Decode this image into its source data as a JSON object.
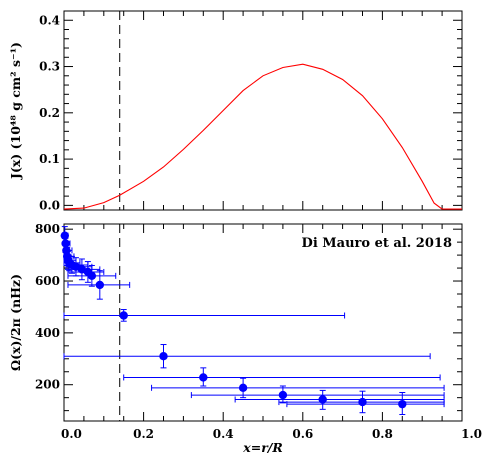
{
  "chart_data": [
    {
      "type": "line",
      "ylabel": "J(x)  (10⁴⁸ g cm² s⁻¹)",
      "xlim": [
        0,
        1.0
      ],
      "ylim": [
        -0.01,
        0.42
      ],
      "yticks": [
        "0.0",
        "0.1",
        "0.2",
        "0.3",
        "0.4"
      ],
      "grid": false,
      "color": "#ff0000",
      "series": [
        {
          "x": [
            0.0,
            0.05,
            0.1,
            0.14,
            0.2,
            0.25,
            0.3,
            0.35,
            0.4,
            0.45,
            0.5,
            0.55,
            0.6,
            0.65,
            0.7,
            0.75,
            0.8,
            0.85,
            0.9,
            0.93,
            0.95,
            1.0
          ],
          "y": [
            -0.008,
            -0.006,
            0.006,
            0.022,
            0.052,
            0.083,
            0.121,
            0.162,
            0.205,
            0.248,
            0.28,
            0.298,
            0.305,
            0.294,
            0.272,
            0.237,
            0.187,
            0.125,
            0.052,
            0.005,
            -0.008,
            -0.008
          ]
        }
      ],
      "marker_line_x": 0.14
    },
    {
      "type": "scatter",
      "xlabel": "x=r/R",
      "ylabel": "Ω(x)/2π  (nHz)",
      "xlim": [
        0,
        1.0
      ],
      "ylim": [
        60,
        820
      ],
      "xticks": [
        "0.0",
        "0.2",
        "0.4",
        "0.6",
        "0.8",
        "1.0"
      ],
      "yticks": [
        "200",
        "400",
        "600",
        "800"
      ],
      "grid": false,
      "color": "#0000ff",
      "legend_text": "Di Mauro et al. 2018",
      "legend_placement": "top-right",
      "marker_line_x": 0.14,
      "series": [
        {
          "points": [
            {
              "x": 0.002,
              "y": 775,
              "xmin": 0.0,
              "xmax": 0.01,
              "ymin": 740,
              "ymax": 810
            },
            {
              "x": 0.004,
              "y": 745,
              "xmin": 0.0,
              "xmax": 0.015,
              "ymin": 710,
              "ymax": 780
            },
            {
              "x": 0.006,
              "y": 718,
              "xmin": 0.0,
              "xmax": 0.02,
              "ymin": 685,
              "ymax": 752
            },
            {
              "x": 0.008,
              "y": 695,
              "xmin": 0.0,
              "xmax": 0.025,
              "ymin": 660,
              "ymax": 730
            },
            {
              "x": 0.01,
              "y": 680,
              "xmin": 0.0,
              "xmax": 0.03,
              "ymin": 645,
              "ymax": 715
            },
            {
              "x": 0.013,
              "y": 670,
              "xmin": 0.0,
              "xmax": 0.04,
              "ymin": 640,
              "ymax": 700
            },
            {
              "x": 0.02,
              "y": 662,
              "xmin": 0.005,
              "xmax": 0.06,
              "ymin": 630,
              "ymax": 695
            },
            {
              "x": 0.03,
              "y": 655,
              "xmin": 0.005,
              "xmax": 0.07,
              "ymin": 620,
              "ymax": 690
            },
            {
              "x": 0.045,
              "y": 645,
              "xmin": 0.01,
              "xmax": 0.09,
              "ymin": 605,
              "ymax": 685
            },
            {
              "x": 0.06,
              "y": 635,
              "xmin": 0.01,
              "xmax": 0.1,
              "ymin": 595,
              "ymax": 675
            },
            {
              "x": 0.07,
              "y": 620,
              "xmin": 0.01,
              "xmax": 0.13,
              "ymin": 580,
              "ymax": 660
            },
            {
              "x": 0.09,
              "y": 585,
              "xmin": 0.01,
              "xmax": 0.165,
              "ymin": 530,
              "ymax": 640
            },
            {
              "x": 0.15,
              "y": 467,
              "xmin": 0.0,
              "xmax": 0.705,
              "ymin": 445,
              "ymax": 490
            },
            {
              "x": 0.25,
              "y": 310,
              "xmin": 0.0,
              "xmax": 0.92,
              "ymin": 265,
              "ymax": 355
            },
            {
              "x": 0.35,
              "y": 228,
              "xmin": 0.15,
              "xmax": 0.945,
              "ymin": 195,
              "ymax": 265
            },
            {
              "x": 0.45,
              "y": 188,
              "xmin": 0.22,
              "xmax": 0.955,
              "ymin": 150,
              "ymax": 225
            },
            {
              "x": 0.55,
              "y": 160,
              "xmin": 0.32,
              "xmax": 0.955,
              "ymin": 130,
              "ymax": 195
            },
            {
              "x": 0.65,
              "y": 143,
              "xmin": 0.43,
              "xmax": 0.955,
              "ymin": 105,
              "ymax": 178
            },
            {
              "x": 0.75,
              "y": 133,
              "xmin": 0.54,
              "xmax": 0.955,
              "ymin": 92,
              "ymax": 175
            },
            {
              "x": 0.85,
              "y": 125,
              "xmin": 0.56,
              "xmax": 0.955,
              "ymin": 85,
              "ymax": 170
            }
          ]
        }
      ]
    }
  ]
}
